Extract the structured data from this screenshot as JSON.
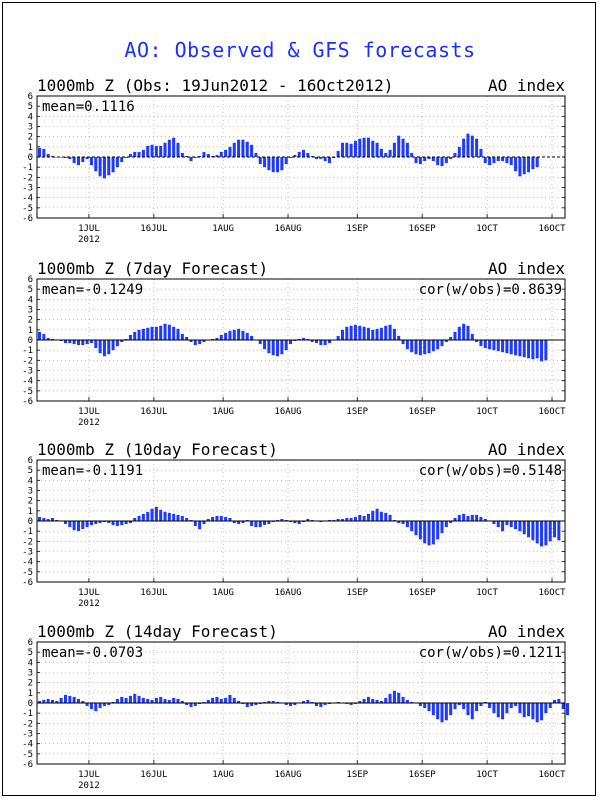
{
  "title": "AO: Observed & GFS forecasts",
  "colors": {
    "bar": "#1f3aff",
    "title": "#1a30ff",
    "grid": "#9a9a9a"
  },
  "chart_data": [
    {
      "type": "bar",
      "title": "1000mb Z (Obs: 19Jun2012 - 16Oct2012)",
      "right_label": "AO index",
      "mean_label": "mean=0.1116",
      "cor_label": "",
      "ylim": [
        -6,
        6
      ],
      "yticks": [
        "6",
        "5",
        "4",
        "3",
        "2",
        "1",
        "0",
        "-1",
        "-2",
        "-3",
        "-4",
        "-5",
        "-6"
      ],
      "xticks": [
        {
          "day": 12,
          "label": "1JUL",
          "sub": "2012"
        },
        {
          "day": 27,
          "label": "16JUL"
        },
        {
          "day": 43,
          "label": "1AUG"
        },
        {
          "day": 58,
          "label": "16AUG"
        },
        {
          "day": 74,
          "label": "1SEP"
        },
        {
          "day": 89,
          "label": "16SEP"
        },
        {
          "day": 104,
          "label": "1OCT"
        },
        {
          "day": 119,
          "label": "16OCT"
        }
      ],
      "zero_line": "dashed",
      "values": [
        0.9,
        0.8,
        0.3,
        0.1,
        0,
        0,
        -0.1,
        -0.2,
        -0.6,
        -0.8,
        -0.5,
        -0.2,
        -0.8,
        -1.4,
        -1.9,
        -2.1,
        -1.8,
        -1.5,
        -1,
        -0.5,
        -0.1,
        0.3,
        0.5,
        0.5,
        0.7,
        1.1,
        1.2,
        1.1,
        1.1,
        1.4,
        1.7,
        1.9,
        1.4,
        0.4,
        0.1,
        -0.4,
        -0.1,
        0.1,
        0.5,
        0.3,
        0.1,
        0.2,
        0.5,
        0.7,
        1,
        1.4,
        1.7,
        1.7,
        1.5,
        1.2,
        0.4,
        -0.7,
        -1,
        -1.3,
        -1.5,
        -1.5,
        -1.3,
        -0.7,
        -0.1,
        0.2,
        0.5,
        0.7,
        0.4,
        0.1,
        -0.2,
        -0.2,
        -0.4,
        -0.6,
        -0.1,
        0.6,
        1.4,
        1.4,
        1.3,
        1.6,
        1.8,
        1.9,
        1.9,
        1.6,
        1.4,
        0.8,
        0.4,
        0.7,
        1.4,
        2.1,
        1.8,
        1.4,
        0.4,
        -0.6,
        -0.7,
        -0.4,
        -0.2,
        -0.4,
        -0.8,
        -0.9,
        -0.6,
        -0.2,
        0.4,
        1,
        1.8,
        2.3,
        2.1,
        1.8,
        0.8,
        -0.6,
        -0.8,
        -0.6,
        -0.4,
        -0.4,
        -0.6,
        -0.8,
        -1.4,
        -1.9,
        -1.7,
        -1.5,
        -1.2,
        -1
      ]
    },
    {
      "type": "bar",
      "title": "1000mb Z (7day Forecast)",
      "right_label": "AO index",
      "mean_label": "mean=-0.1249",
      "cor_label": "cor(w/obs)=0.8639",
      "ylim": [
        -6,
        6
      ],
      "yticks": [
        "6",
        "5",
        "4",
        "3",
        "2",
        "1",
        "0",
        "-1",
        "-2",
        "-3",
        "-4",
        "-5",
        "-6"
      ],
      "xticks": [
        {
          "day": 12,
          "label": "1JUL",
          "sub": "2012"
        },
        {
          "day": 27,
          "label": "16JUL"
        },
        {
          "day": 43,
          "label": "1AUG"
        },
        {
          "day": 58,
          "label": "16AUG"
        },
        {
          "day": 74,
          "label": "1SEP"
        },
        {
          "day": 89,
          "label": "16SEP"
        },
        {
          "day": 104,
          "label": "1OCT"
        },
        {
          "day": 119,
          "label": "16OCT"
        }
      ],
      "zero_line": "solid",
      "values": [
        0.8,
        0.6,
        0.2,
        0.1,
        0,
        -0.1,
        -0.3,
        -0.3,
        -0.4,
        -0.5,
        -0.5,
        -0.4,
        -0.3,
        -0.8,
        -1.3,
        -1.6,
        -1.4,
        -1,
        -0.6,
        -0.2,
        0.1,
        0.5,
        0.8,
        1,
        1.1,
        1.2,
        1.3,
        1.3,
        1.4,
        1.6,
        1.5,
        1.3,
        1.1,
        0.6,
        0.3,
        -0.2,
        -0.5,
        -0.4,
        -0.2,
        0,
        0.1,
        0.2,
        0.5,
        0.7,
        0.9,
        1,
        1.1,
        0.9,
        0.7,
        0.4,
        0,
        -0.4,
        -0.9,
        -1.3,
        -1.5,
        -1.6,
        -1.4,
        -1,
        -0.4,
        -0.1,
        0.1,
        0.2,
        0.1,
        -0.2,
        -0.3,
        -0.5,
        -0.5,
        -0.3,
        0,
        0.4,
        1,
        1.3,
        1.4,
        1.5,
        1.4,
        1.3,
        1.2,
        1,
        1.1,
        1.2,
        1.4,
        1.5,
        1.1,
        0.4,
        -0.4,
        -0.9,
        -1.2,
        -1.4,
        -1.5,
        -1.4,
        -1.3,
        -1.1,
        -0.9,
        -0.6,
        -0.2,
        0.3,
        0.8,
        1.3,
        1.6,
        1.4,
        0.6,
        -0.2,
        -0.6,
        -0.8,
        -0.9,
        -1,
        -1.1,
        -1.2,
        -1.3,
        -1.4,
        -1.5,
        -1.6,
        -1.7,
        -1.8,
        -1.9,
        -1.8,
        -2.1,
        -2
      ]
    },
    {
      "type": "bar",
      "title": "1000mb Z (10day Forecast)",
      "right_label": "AO index",
      "mean_label": "mean=-0.1191",
      "cor_label": "cor(w/obs)=0.5148",
      "ylim": [
        -6,
        6
      ],
      "yticks": [
        "6",
        "5",
        "4",
        "3",
        "2",
        "1",
        "0",
        "-1",
        "-2",
        "-3",
        "-4",
        "-5",
        "-6"
      ],
      "xticks": [
        {
          "day": 12,
          "label": "1JUL",
          "sub": "2012"
        },
        {
          "day": 27,
          "label": "16JUL"
        },
        {
          "day": 43,
          "label": "1AUG"
        },
        {
          "day": 58,
          "label": "16AUG"
        },
        {
          "day": 74,
          "label": "1SEP"
        },
        {
          "day": 89,
          "label": "16SEP"
        },
        {
          "day": 104,
          "label": "1OCT"
        },
        {
          "day": 119,
          "label": "16OCT"
        }
      ],
      "zero_line": "solid",
      "values": [
        0.4,
        0.3,
        0.2,
        0.3,
        0.1,
        0,
        -0.3,
        -0.6,
        -0.9,
        -1,
        -0.8,
        -0.6,
        -0.4,
        -0.3,
        -0.2,
        -0.1,
        -0.2,
        -0.4,
        -0.5,
        -0.4,
        -0.3,
        -0.2,
        0.3,
        0.5,
        0.7,
        0.9,
        1.2,
        1.4,
        1.1,
        0.9,
        0.8,
        0.7,
        0.6,
        0.5,
        0.3,
        0.1,
        -0.5,
        -0.8,
        -0.3,
        0.2,
        0.4,
        0.5,
        0.5,
        0.4,
        0.3,
        -0.2,
        -0.3,
        -0.2,
        0.1,
        -0.5,
        -0.6,
        -0.6,
        -0.4,
        -0.3,
        -0.1,
        0.1,
        0.2,
        0.1,
        -0.1,
        -0.2,
        -0.3,
        -0.1,
        0.2,
        0.1,
        0,
        -0.1,
        0,
        0.1,
        0.1,
        0.2,
        0.2,
        0.3,
        0.3,
        0.4,
        0.6,
        0.5,
        0.7,
        1,
        1.2,
        0.9,
        0.8,
        0.6,
        0.1,
        -0.2,
        -0.3,
        -0.6,
        -1,
        -1.4,
        -1.8,
        -2.2,
        -2.4,
        -2.3,
        -1.8,
        -1.2,
        -0.6,
        -0.2,
        0.3,
        0.6,
        0.7,
        0.5,
        0.6,
        0.6,
        0.4,
        0.2,
        0,
        -0.3,
        -0.6,
        -1,
        -0.4,
        -0.6,
        -0.8,
        -1,
        -1.3,
        -1.6,
        -1.9,
        -2.2,
        -2.5,
        -2.4,
        -2,
        -1.6,
        -1.9
      ]
    },
    {
      "type": "bar",
      "title": "1000mb Z (14day Forecast)",
      "right_label": "AO index",
      "mean_label": "mean=-0.0703",
      "cor_label": "cor(w/obs)=0.1211",
      "ylim": [
        -6,
        6
      ],
      "yticks": [
        "6",
        "5",
        "4",
        "3",
        "2",
        "1",
        "0",
        "-1",
        "-2",
        "-3",
        "-4",
        "-5",
        "-6"
      ],
      "xticks": [
        {
          "day": 12,
          "label": "1JUL",
          "sub": "2012"
        },
        {
          "day": 27,
          "label": "16JUL"
        },
        {
          "day": 43,
          "label": "1AUG"
        },
        {
          "day": 58,
          "label": "16AUG"
        },
        {
          "day": 74,
          "label": "1SEP"
        },
        {
          "day": 89,
          "label": "16SEP"
        },
        {
          "day": 104,
          "label": "1OCT"
        },
        {
          "day": 119,
          "label": "16OCT"
        }
      ],
      "zero_line": "solid",
      "values": [
        0.2,
        0.3,
        0.4,
        0.3,
        0.2,
        0.5,
        0.8,
        0.7,
        0.6,
        0.4,
        0.2,
        -0.3,
        -0.6,
        -0.8,
        -0.5,
        -0.3,
        -0.2,
        0.1,
        0.4,
        0.6,
        0.5,
        0.7,
        0.9,
        0.7,
        0.5,
        0.4,
        0.3,
        0.5,
        0.6,
        0.4,
        0.3,
        0.5,
        0.4,
        0.2,
        -0.2,
        -0.4,
        -0.3,
        -0.1,
        0.1,
        0.3,
        0.5,
        0.6,
        0.4,
        0.5,
        0.8,
        0.5,
        0.2,
        -0.1,
        -0.4,
        -0.3,
        -0.2,
        -0.1,
        0.1,
        0.2,
        0.2,
        0.1,
        0,
        -0.2,
        -0.3,
        -0.2,
        0,
        0.2,
        0.3,
        0.1,
        -0.3,
        -0.4,
        -0.2,
        -0.1,
        0,
        0.1,
        0,
        -0.1,
        -0.2,
        -0.1,
        0.2,
        0.4,
        0.6,
        0.4,
        0.3,
        0.2,
        0.5,
        0.9,
        1.2,
        1,
        0.6,
        0.3,
        0.1,
        0,
        -0.3,
        -0.5,
        -0.8,
        -1.2,
        -1.6,
        -1.9,
        -1.7,
        -1.2,
        -0.6,
        -0.2,
        -0.6,
        -1.2,
        -1.6,
        -0.8,
        -0.3,
        0.1,
        -0.5,
        -1,
        -1.4,
        -1.6,
        -1,
        -0.5,
        -0.3,
        -1,
        -1.4,
        -1.3,
        -1.6,
        -1.9,
        -1.7,
        -1,
        -0.5,
        0.3,
        0.4,
        -0.6,
        -1.2
      ]
    }
  ]
}
